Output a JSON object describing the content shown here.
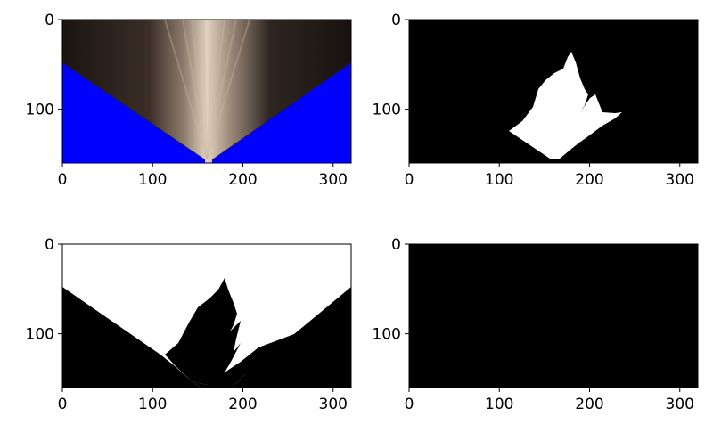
{
  "chart_data": [
    {
      "type": "image",
      "content": "perspective-warped photo, outside region filled blue",
      "x_ticks": [
        "0",
        "100",
        "200",
        "300"
      ],
      "y_ticks": [
        "0",
        "100"
      ],
      "xlim": [
        0,
        320
      ],
      "ylim": [
        160,
        0
      ],
      "colors": {
        "fill": "#0000ff",
        "dark": "#2a221d",
        "light": "#d9c9b6"
      }
    },
    {
      "type": "image",
      "content": "binary mask, white blob on black",
      "x_ticks": [
        "0",
        "100",
        "200",
        "300"
      ],
      "y_ticks": [
        "0",
        "100"
      ],
      "xlim": [
        0,
        320
      ],
      "ylim": [
        160,
        0
      ],
      "colors": {
        "background": "#000000",
        "mask": "#ffffff"
      }
    },
    {
      "type": "image",
      "content": "binary mask, white region above black triangles",
      "x_ticks": [
        "0",
        "100",
        "200",
        "300"
      ],
      "y_ticks": [
        "0",
        "100"
      ],
      "xlim": [
        0,
        320
      ],
      "ylim": [
        160,
        0
      ],
      "colors": {
        "background": "#000000",
        "mask": "#ffffff"
      }
    },
    {
      "type": "image",
      "content": "all black",
      "x_ticks": [
        "0",
        "100",
        "200",
        "300"
      ],
      "y_ticks": [
        "0",
        "100"
      ],
      "xlim": [
        0,
        320
      ],
      "ylim": [
        160,
        0
      ],
      "colors": {
        "background": "#000000"
      }
    }
  ]
}
